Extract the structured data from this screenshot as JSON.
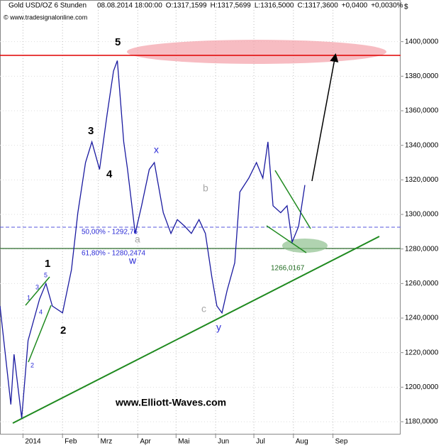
{
  "chart_data": {
    "type": "line",
    "title": "Gold USD/OZ 6 Stunden",
    "header": [
      "08.08.2014 18:00:00",
      "O:1317,1599",
      "H:1317,5699",
      "L:1316,5000",
      "C:1317,3600",
      "+0,0400",
      "+0,0030%"
    ],
    "header_colors": [
      "#000000",
      "#d00000",
      "#000000",
      "#000000",
      "#009000",
      "#009000",
      "#009000"
    ],
    "currency": "$",
    "source": "© www.tradesignalonline.com",
    "watermark": "www.Elliott-Waves.com",
    "annotations": [
      "5",
      "3",
      "4",
      "1",
      "2",
      "x",
      "w",
      "b",
      "a",
      "c",
      "y",
      "1",
      "2",
      "3",
      "4",
      "5",
      "50,00% - 1292,76",
      "61,80% - 1280,2474",
      "1266,0167"
    ],
    "x": [
      -18,
      -9.5,
      -7,
      -1,
      4,
      13,
      18,
      23,
      31,
      38,
      43,
      49,
      54,
      60,
      66,
      71,
      74,
      79,
      82,
      88,
      93,
      99,
      103,
      110,
      116,
      121,
      127,
      132,
      138,
      143,
      148,
      152,
      156,
      160,
      166,
      170,
      177,
      183,
      188,
      192,
      196,
      202,
      207,
      211,
      216,
      221
    ],
    "values": [
      1247,
      1190,
      1219,
      1182,
      1227,
      1251,
      1260,
      1247,
      1243,
      1268,
      1301,
      1330,
      1342,
      1326,
      1358,
      1383,
      1389,
      1342,
      1326,
      1289,
      1305,
      1326,
      1330,
      1301,
      1289,
      1297,
      1293,
      1289,
      1297,
      1289,
      1264,
      1247,
      1243,
      1256,
      1272,
      1313,
      1321,
      1330,
      1321,
      1342,
      1305,
      1301,
      1305,
      1284,
      1293,
      1317
    ],
    "color": "#1a1aa0",
    "xlim": [
      -18,
      296
    ],
    "xticks": [
      {
        "value": 0,
        "label": "2014"
      },
      {
        "value": 31,
        "label": "Feb"
      },
      {
        "value": 59,
        "label": "Mrz"
      },
      {
        "value": 90,
        "label": "Apr"
      },
      {
        "value": 120,
        "label": "Mai"
      },
      {
        "value": 151,
        "label": "Jun"
      },
      {
        "value": 181,
        "label": "Jul"
      },
      {
        "value": 212,
        "label": "Aug"
      },
      {
        "value": 243,
        "label": "Sep"
      }
    ],
    "ylim": [
      1172.6,
      1420
    ],
    "yticks": [
      {
        "value": 1180,
        "label": "1180,0000"
      },
      {
        "value": 1200,
        "label": "1200,0000"
      },
      {
        "value": 1220,
        "label": "1220,0000"
      },
      {
        "value": 1240,
        "label": "1240,0000"
      },
      {
        "value": 1260,
        "label": "1260,0000"
      },
      {
        "value": 1280,
        "label": "1280,0000"
      },
      {
        "value": 1300,
        "label": "1300,0000"
      },
      {
        "value": 1320,
        "label": "1320,0000"
      },
      {
        "value": 1340,
        "label": "1340,0000"
      },
      {
        "value": 1360,
        "label": "1360,0000"
      },
      {
        "value": 1380,
        "label": "1380,0000"
      },
      {
        "value": 1400,
        "label": "1400,0000"
      }
    ],
    "grid": true
  }
}
